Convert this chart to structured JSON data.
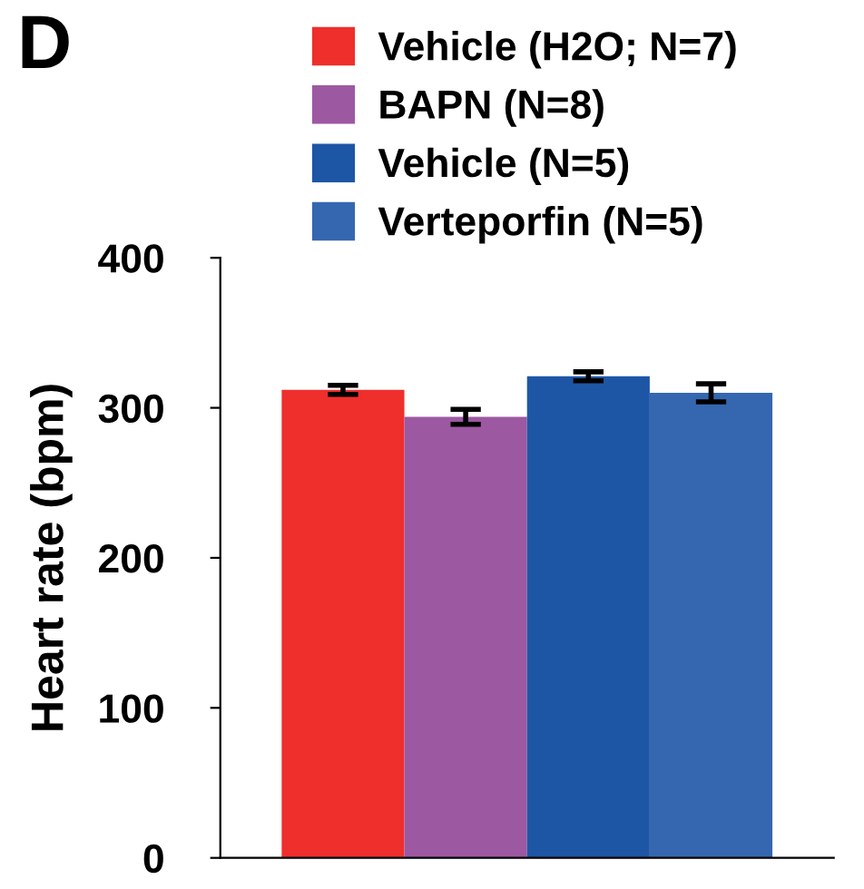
{
  "chart_data": {
    "type": "bar",
    "title": "D",
    "ylabel": "Heart rate (bpm)",
    "categories": [
      null
    ],
    "series": [
      {
        "name": "Vehicle (H2O; N=7)",
        "color": "#ee2f2c",
        "values": [
          312
        ],
        "errors": [
          3
        ]
      },
      {
        "name": "BAPN (N=8)",
        "color": "#9d58a2",
        "values": [
          294
        ],
        "errors": [
          5
        ]
      },
      {
        "name": "Vehicle (N=5)",
        "color": "#1e56a6",
        "values": [
          321
        ],
        "errors": [
          3
        ]
      },
      {
        "name": "Verteporfin (N=5)",
        "color": "#3567b0",
        "values": [
          310
        ],
        "errors": [
          6
        ]
      }
    ],
    "ylim": [
      0,
      400
    ],
    "yticks": [
      0,
      100,
      200,
      300,
      400
    ],
    "grid": false,
    "legend": "top"
  }
}
